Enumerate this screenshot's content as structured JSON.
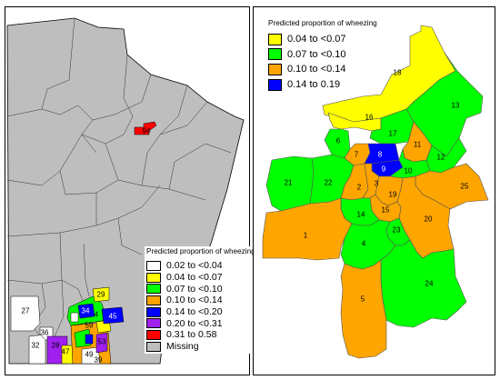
{
  "left_map": {
    "legend_title": "Predicted proportion of wheezing",
    "legend": [
      {
        "label": "0.02 to <0.04",
        "color": "#ffffff"
      },
      {
        "label": "0.04 to <0.07",
        "color": "#ffff00"
      },
      {
        "label": "0.07 to <0.10",
        "color": "#00ff00"
      },
      {
        "label": "0.10 to <0.14",
        "color": "#ffa500"
      },
      {
        "label": "0.14 to <0.20",
        "color": "#0000ff"
      },
      {
        "label": "0.20 to <0.31",
        "color": "#a020f0"
      },
      {
        "label": "0.31 to 0.58",
        "color": "#ff0000"
      },
      {
        "label": "Missing",
        "color": "#bebebe"
      }
    ],
    "region_labels": {
      "r94": "94",
      "r27": "27",
      "r36": "36",
      "r32": "32",
      "r28": "28",
      "r47": "47",
      "r34": "34",
      "r45": "45",
      "r29": "29",
      "r4": "4",
      "r59": "59",
      "r53": "53",
      "r49": "49",
      "r39": "39"
    }
  },
  "right_map": {
    "legend_title": "Predicted proportion of wheezing",
    "legend": [
      {
        "label": "0.04 to <0.07",
        "color": "#ffff00"
      },
      {
        "label": "0.07 to <0.10",
        "color": "#00ff00"
      },
      {
        "label": "0.10 to <0.14",
        "color": "#ffa500"
      },
      {
        "label": "0.14 to 0.19",
        "color": "#0000ff"
      }
    ],
    "regions": {
      "n18": "18",
      "n16": "16",
      "n13": "13",
      "n6": "6",
      "n17": "17",
      "n11": "11",
      "n7": "7",
      "n8": "8",
      "n9": "9",
      "n10": "10",
      "n12": "12",
      "n21": "21",
      "n22": "22",
      "n2": "2",
      "n3": "3",
      "n19": "19",
      "n25": "25",
      "n15": "15",
      "n14": "14",
      "n20": "20",
      "n1": "1",
      "n23": "23",
      "n4": "4",
      "n24": "24",
      "n5": "5"
    }
  }
}
